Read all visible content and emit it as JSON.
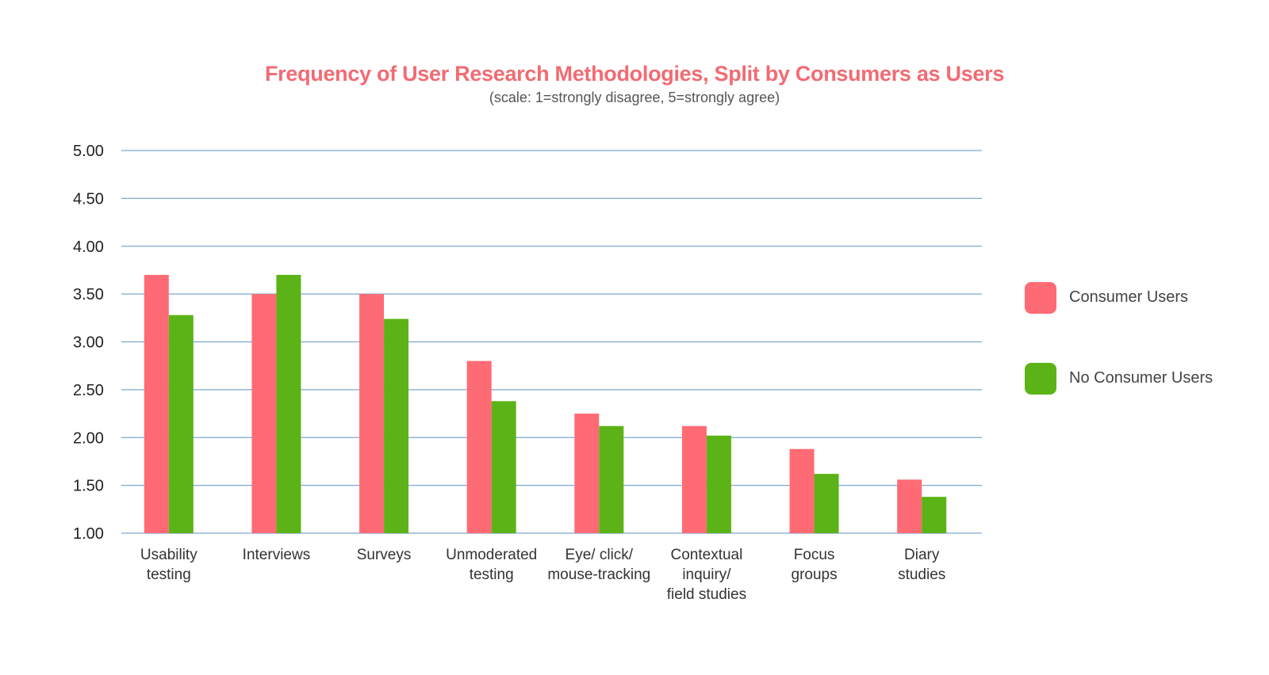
{
  "chart_data": {
    "type": "bar",
    "title": "Frequency of User Research Methodologies, Split by Consumers as Users",
    "subtitle": "(scale: 1=strongly disagree, 5=strongly agree)",
    "categories": [
      [
        "Usability",
        "testing"
      ],
      [
        "Interviews"
      ],
      [
        "Surveys"
      ],
      [
        "Unmoderated",
        "testing"
      ],
      [
        "Eye/ click/",
        "mouse-tracking"
      ],
      [
        "Contextual",
        "inquiry/",
        "field studies"
      ],
      [
        "Focus",
        "groups"
      ],
      [
        "Diary",
        "studies"
      ]
    ],
    "series": [
      {
        "name": "Consumer Users",
        "color": "#ff6b75",
        "values": [
          3.7,
          3.5,
          3.5,
          2.8,
          2.25,
          2.12,
          1.88,
          1.56
        ]
      },
      {
        "name": "No Consumer Users",
        "color": "#5cb317",
        "values": [
          3.28,
          3.7,
          3.24,
          2.38,
          2.12,
          2.02,
          1.62,
          1.38
        ]
      }
    ],
    "ylim": [
      1.0,
      5.0
    ],
    "yticks": [
      "1.00",
      "1.50",
      "2.00",
      "2.50",
      "3.00",
      "3.50",
      "4.00",
      "4.50",
      "5.00"
    ],
    "grid": true,
    "gridColor": "#7ea7d1",
    "legend": "right"
  }
}
